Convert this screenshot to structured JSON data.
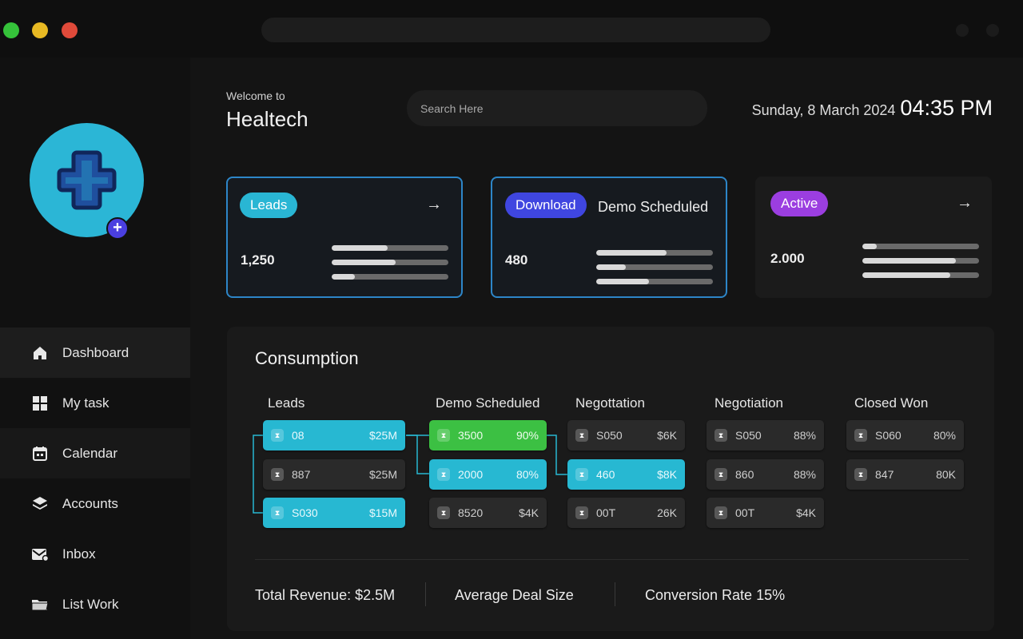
{
  "header": {
    "welcome": "Welcome to",
    "brand": "Healtech",
    "search_placeholder": "Search Here",
    "date": "Sunday, 8 March 2024",
    "time": "04:35 PM"
  },
  "sidebar": {
    "items": [
      {
        "label": "Dashboard",
        "icon": "home-icon"
      },
      {
        "label": "My task",
        "icon": "grid-icon"
      },
      {
        "label": "Calendar",
        "icon": "calendar-icon"
      },
      {
        "label": "Accounts",
        "icon": "layers-icon"
      },
      {
        "label": "Inbox",
        "icon": "mail-icon"
      },
      {
        "label": "List Work",
        "icon": "folder-icon"
      }
    ]
  },
  "cards": [
    {
      "pill": "Leads",
      "pill_color": "#29b6d4",
      "label": "",
      "value": "1,250",
      "bars": [
        0.48,
        0.55,
        0.2
      ]
    },
    {
      "pill": "Download",
      "pill_color": "#3f46e0",
      "label": "Demo Scheduled",
      "value": "480",
      "bars": [
        0.6,
        0.25,
        0.45
      ]
    },
    {
      "pill": "Active",
      "pill_color": "#9b3ee0",
      "label": "",
      "value": "2.000",
      "bars": [
        0.12,
        0.8,
        0.75
      ]
    }
  ],
  "consumption": {
    "title": "Consumption",
    "columns": [
      {
        "name": "Leads",
        "chips": [
          {
            "a": "08",
            "b": "$25M",
            "color": "cyan"
          },
          {
            "a": "887",
            "b": "$25M",
            "color": "grey"
          },
          {
            "a": "S030",
            "b": "$15M",
            "color": "cyan"
          }
        ]
      },
      {
        "name": "Demo Scheduled",
        "chips": [
          {
            "a": "3500",
            "b": "90%",
            "color": "green"
          },
          {
            "a": "2000",
            "b": "80%",
            "color": "cyan"
          },
          {
            "a": "8520",
            "b": "$4K",
            "color": "grey"
          }
        ]
      },
      {
        "name": "Negottation",
        "chips": [
          {
            "a": "S050",
            "b": "$6K",
            "color": "grey"
          },
          {
            "a": "460",
            "b": "$8K",
            "color": "cyan"
          },
          {
            "a": "00T",
            "b": "26K",
            "color": "grey"
          }
        ]
      },
      {
        "name": "Negotiation",
        "chips": [
          {
            "a": "S050",
            "b": "88%",
            "color": "grey"
          },
          {
            "a": "860",
            "b": "88%",
            "color": "grey"
          },
          {
            "a": "00T",
            "b": "$4K",
            "color": "grey"
          }
        ]
      },
      {
        "name": "Closed Won",
        "chips": [
          {
            "a": "S060",
            "b": "80%",
            "color": "grey"
          },
          {
            "a": "847",
            "b": "80K",
            "color": "grey"
          }
        ]
      }
    ],
    "summary": {
      "revenue": "Total Revenue: $2.5M",
      "deal": "Average Deal Size",
      "conversion": "Conversion Rate 15%"
    }
  }
}
